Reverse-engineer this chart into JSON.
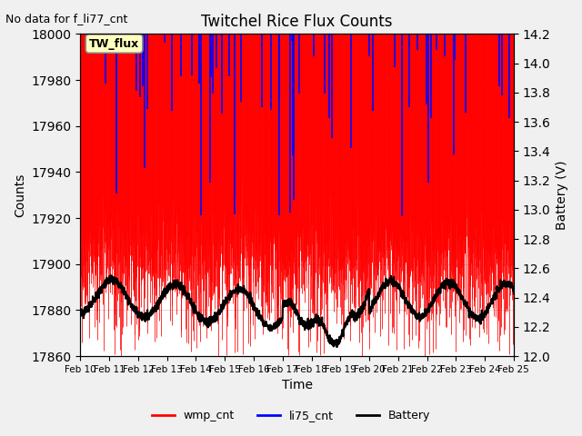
{
  "title": "Twitchel Rice Flux Counts",
  "no_data_text": "No data for f_li77_cnt",
  "tw_flux_label": "TW_flux",
  "xlabel": "Time",
  "ylabel_left": "Counts",
  "ylabel_right": "Battery (V)",
  "ylim_left": [
    17860,
    18000
  ],
  "ylim_right": [
    12.0,
    14.2
  ],
  "yticks_left": [
    17860,
    17880,
    17900,
    17920,
    17940,
    17960,
    17980,
    18000
  ],
  "yticks_right": [
    12.0,
    12.2,
    12.4,
    12.6,
    12.8,
    13.0,
    13.2,
    13.4,
    13.6,
    13.8,
    14.0,
    14.2
  ],
  "xtick_labels": [
    "Feb 10",
    "Feb 11",
    "Feb 12",
    "Feb 13",
    "Feb 14",
    "Feb 15",
    "Feb 16",
    "Feb 17",
    "Feb 18",
    "Feb 19",
    "Feb 20",
    "Feb 21",
    "Feb 22",
    "Feb 23",
    "Feb 24",
    "Feb 25"
  ],
  "legend_entries": [
    "wmp_cnt",
    "li75_cnt",
    "Battery"
  ],
  "bg_color": "#f0f0f0",
  "plot_bg_color": "#ffffff",
  "grid_color": "#cccccc"
}
